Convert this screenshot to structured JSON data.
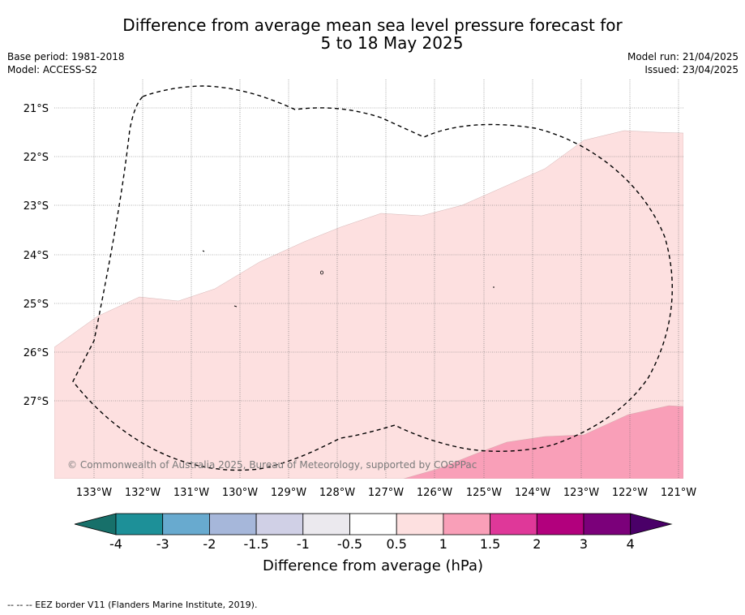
{
  "title": {
    "line1": "Difference from average mean sea level pressure forecast for",
    "line2": "5 to 18 May 2025"
  },
  "meta_left": {
    "base_period": "Base period: 1981-2018",
    "model": "Model: ACCESS-S2"
  },
  "meta_right": {
    "model_run": "Model run: 21/04/2025",
    "issued": "Issued: 23/04/2025"
  },
  "map": {
    "lat_labels": [
      "21°S",
      "22°S",
      "23°S",
      "24°S",
      "25°S",
      "26°S",
      "27°S"
    ],
    "lon_labels": [
      "133°W",
      "132°W",
      "131°W",
      "130°W",
      "129°W",
      "128°W",
      "127°W",
      "126°W",
      "125°W",
      "124°W",
      "123°W",
      "122°W",
      "121°W"
    ],
    "copyright": "© Commonwealth of Australia 2025, Bureau of Meteorology, supported by COSPPac",
    "colors": {
      "pink_light": "#fde0e0",
      "pink_mid": "#f99fb8"
    }
  },
  "colorbar": {
    "colors": [
      "#17706a",
      "#1d9098",
      "#68aacf",
      "#a6b7da",
      "#d0d0e6",
      "#ebe9ee",
      "#ffffff",
      "#fde0e0",
      "#f99fb8",
      "#df3899",
      "#b2007d",
      "#7b007a",
      "#4a0068"
    ],
    "tick_labels": [
      "-4",
      "-3",
      "-2",
      "-1.5",
      "-1",
      "-0.5",
      "0.5",
      "1",
      "1.5",
      "2",
      "3",
      "4"
    ],
    "label": "Difference from average (hPa)"
  },
  "footer": "--  --  -- EEZ border V11 (Flanders Marine Institute, 2019)."
}
